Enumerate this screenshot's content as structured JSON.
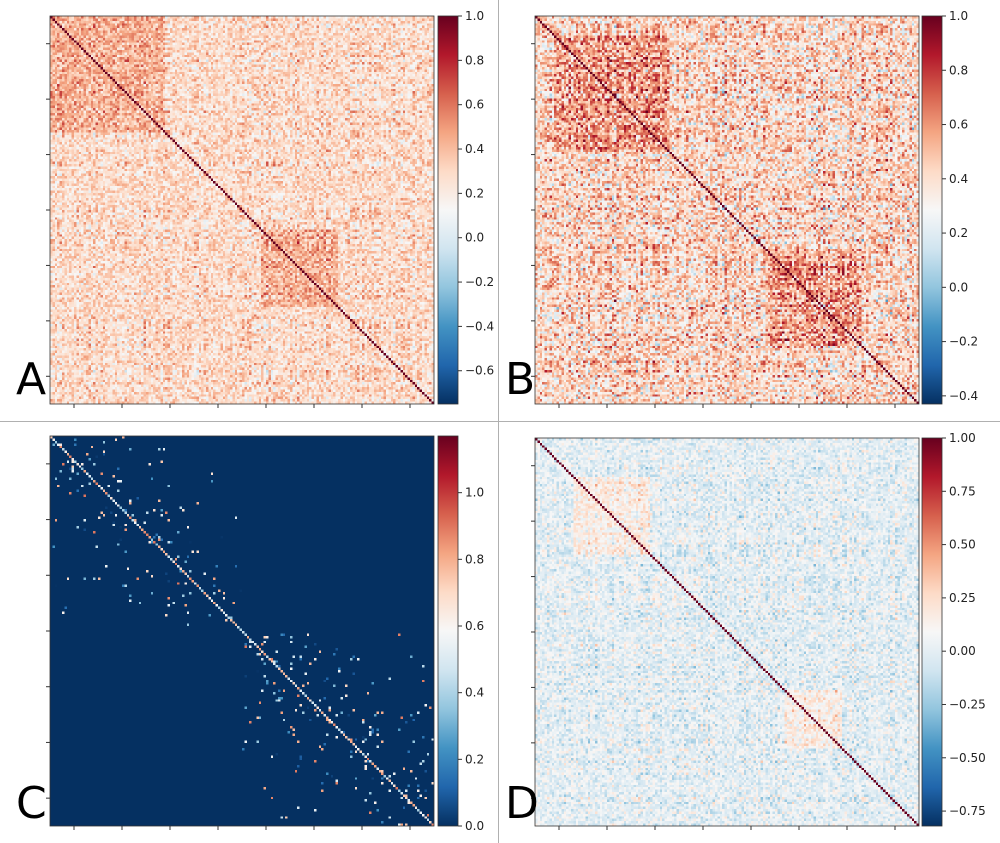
{
  "figure": {
    "panel_letters": [
      "A",
      "B",
      "C",
      "D"
    ]
  },
  "chart_data": [
    {
      "panel": "A",
      "type": "heatmap",
      "title": "",
      "xlabel": "",
      "ylabel": "",
      "colormap": "RdBu_r",
      "colorbar": {
        "vmin": -0.75,
        "vmax": 1.0,
        "ticks": [
          1.0,
          0.8,
          0.6,
          0.4,
          0.2,
          0.0,
          -0.2,
          -0.4,
          -0.6
        ],
        "tick_labels": [
          "1.0",
          "0.8",
          "0.6",
          "0.4",
          "0.2",
          "0.0",
          "−0.2",
          "−0.4",
          "−0.6"
        ]
      },
      "matrix_size": 160,
      "pattern": {
        "kind": "correlation",
        "mean": 0.28,
        "spread": 0.32,
        "diagonal": 1.0,
        "blocks": [
          [
            0,
            0.3
          ],
          [
            0.55,
            0.75
          ]
        ],
        "seed": 11
      },
      "x_tick_count": 8,
      "y_tick_count": 7
    },
    {
      "panel": "B",
      "type": "heatmap",
      "title": "",
      "xlabel": "",
      "ylabel": "",
      "colormap": "RdBu_r",
      "colorbar": {
        "vmin": -0.43,
        "vmax": 1.0,
        "ticks": [
          1.0,
          0.8,
          0.6,
          0.4,
          0.2,
          0.0,
          -0.2,
          -0.4
        ],
        "tick_labels": [
          "1.0",
          "0.8",
          "0.6",
          "0.4",
          "0.2",
          "0.0",
          "−0.2",
          "−0.4"
        ]
      },
      "matrix_size": 160,
      "pattern": {
        "kind": "correlation",
        "mean": 0.42,
        "spread": 0.42,
        "diagonal": 1.0,
        "blocks": [
          [
            0.05,
            0.35
          ],
          [
            0.6,
            0.85
          ]
        ],
        "seed": 23
      },
      "x_tick_count": 8,
      "y_tick_count": 7
    },
    {
      "panel": "C",
      "type": "heatmap",
      "title": "",
      "xlabel": "",
      "ylabel": "",
      "colormap": "RdBu_r",
      "colorbar": {
        "vmin": 0.0,
        "vmax": 1.17,
        "ticks": [
          1.0,
          0.8,
          0.6,
          0.4,
          0.2,
          0.0
        ],
        "tick_labels": [
          "1.0",
          "0.8",
          "0.6",
          "0.4",
          "0.2",
          "0.0"
        ]
      },
      "matrix_size": 160,
      "pattern": {
        "kind": "sparse",
        "mean": 0.02,
        "spread": 0.35,
        "diagonal": 0.9,
        "blocks": [
          [
            0,
            0.5
          ],
          [
            0.5,
            1.0
          ]
        ],
        "seed": 37
      },
      "x_tick_count": 8,
      "y_tick_count": 7
    },
    {
      "panel": "D",
      "type": "heatmap",
      "title": "",
      "xlabel": "",
      "ylabel": "",
      "colormap": "RdBu_r",
      "colorbar": {
        "vmin": -0.82,
        "vmax": 1.0,
        "ticks": [
          1.0,
          0.75,
          0.5,
          0.25,
          0.0,
          -0.25,
          -0.5,
          -0.75
        ],
        "tick_labels": [
          "1.00",
          "0.75",
          "0.50",
          "0.25",
          "0.00",
          "−0.25",
          "−0.50",
          "−0.75"
        ]
      },
      "matrix_size": 160,
      "pattern": {
        "kind": "correlation",
        "mean": 0.0,
        "spread": 0.28,
        "diagonal": 1.0,
        "blocks": [
          [
            0.1,
            0.3
          ],
          [
            0.65,
            0.8
          ]
        ],
        "seed": 51
      },
      "x_tick_count": 8,
      "y_tick_count": 7
    }
  ]
}
